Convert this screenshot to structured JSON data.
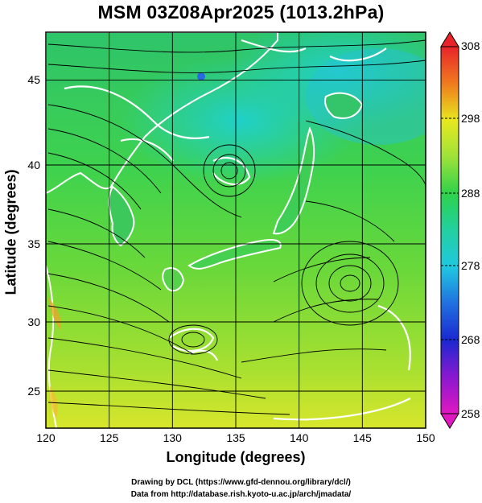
{
  "title": "MSM 03Z08Apr2025 (1013.2hPa)",
  "xlabel": "Longitude (degrees)",
  "ylabel": "Latitude  (degrees)",
  "credits": {
    "line1": "Drawing by DCL (https://www.gfd-dennou.org/library/dcl/)",
    "line2": "Data from http://database.rish.kyoto-u.ac.jp/arch/jmadata/"
  },
  "map": {
    "lon_range": [
      120,
      150
    ],
    "lat_range": [
      22.5,
      47.6
    ],
    "x_ticks": [
      "120",
      "125",
      "130",
      "135",
      "140",
      "145",
      "150"
    ],
    "y_ticks": [
      "25",
      "30",
      "35",
      "40",
      "45"
    ],
    "field": "temperature with wind streamlines",
    "colors": {
      "land_contour": "#ffffff",
      "streamline": "#000000",
      "grid": "#000000"
    }
  },
  "colorbar": {
    "labels": [
      "308",
      "298",
      "288",
      "278",
      "268",
      "258"
    ],
    "min": 258,
    "max": 308
  }
}
